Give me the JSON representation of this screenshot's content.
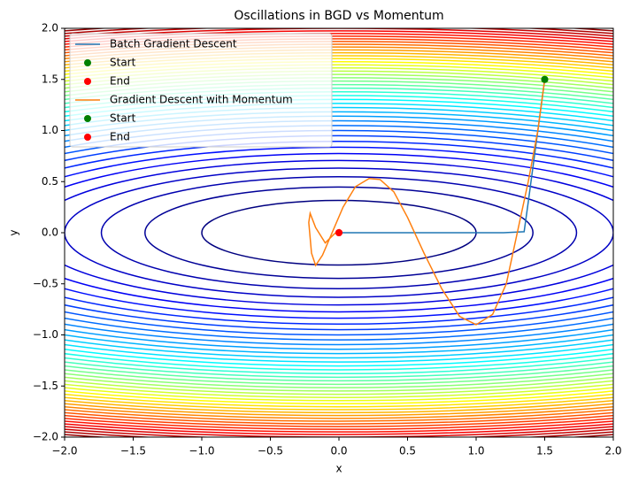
{
  "chart_data": {
    "type": "contour-line",
    "title": "Oscillations in BGD vs Momentum",
    "x_label": "x",
    "y_label": "y",
    "xlim": [
      -2,
      2
    ],
    "ylim": [
      -2,
      2
    ],
    "xticks": [
      {
        "value": -2,
        "label": "−2.0"
      },
      {
        "value": -1.5,
        "label": "−1.5"
      },
      {
        "value": -1,
        "label": "−1.0"
      },
      {
        "value": -0.5,
        "label": "−0.5"
      },
      {
        "value": 0,
        "label": "0.0"
      },
      {
        "value": 0.5,
        "label": "0.5"
      },
      {
        "value": 1,
        "label": "1.0"
      },
      {
        "value": 1.5,
        "label": "1.5"
      },
      {
        "value": 2,
        "label": "2.0"
      }
    ],
    "yticks": [
      {
        "value": -2,
        "label": "−2.0"
      },
      {
        "value": -1.5,
        "label": "−1.5"
      },
      {
        "value": -1,
        "label": "−1.0"
      },
      {
        "value": -0.5,
        "label": "−0.5"
      },
      {
        "value": 0,
        "label": "0.0"
      },
      {
        "value": 0.5,
        "label": "0.5"
      },
      {
        "value": 1,
        "label": "1.0"
      },
      {
        "value": 1.5,
        "label": "1.5"
      },
      {
        "value": 2,
        "label": "2.0"
      }
    ],
    "contour": {
      "function": "x^2 + 10y^2",
      "colormap": "jet",
      "levels": [
        1,
        2,
        3,
        4,
        5,
        6,
        7,
        8,
        9,
        10,
        11,
        12,
        13,
        14,
        15,
        16,
        17,
        18,
        19,
        20,
        21,
        22,
        23,
        24,
        25,
        26,
        27,
        28,
        29,
        30,
        31,
        32,
        33,
        34,
        35,
        36,
        37,
        38,
        39,
        40,
        41,
        42,
        43,
        44
      ]
    },
    "legend": "upper left",
    "series": [
      {
        "name": "Batch Gradient Descent",
        "kind": "line",
        "color": "#1f77b4",
        "x": [
          1.5,
          1.47,
          1.44,
          1.41,
          1.38,
          1.35,
          1.2,
          1.0,
          0.8,
          0.6,
          0.4,
          0.2,
          0.1,
          0.05,
          0.0
        ],
        "y": [
          1.5,
          1.2,
          0.9,
          0.6,
          0.3,
          0.01,
          0,
          0,
          0,
          0,
          0,
          0,
          0,
          0,
          0
        ]
      },
      {
        "name": "Start",
        "kind": "point",
        "color": "#008000",
        "x": [
          1.5
        ],
        "y": [
          1.5
        ]
      },
      {
        "name": "End",
        "kind": "point",
        "color": "#ff0000",
        "x": [
          0.0
        ],
        "y": [
          0.0
        ]
      },
      {
        "name": "Gradient Descent with Momentum",
        "kind": "line",
        "color": "#ff7f0e",
        "x": [
          1.5,
          1.45,
          1.38,
          1.3,
          1.22,
          1.12,
          1.0,
          0.88,
          0.75,
          0.62,
          0.5,
          0.4,
          0.3,
          0.22,
          0.12,
          0.03,
          -0.05,
          -0.12,
          -0.17,
          -0.2,
          -0.22,
          -0.21,
          -0.17,
          -0.1,
          -0.04,
          0.0,
          0.01
        ],
        "y": [
          1.5,
          1.0,
          0.5,
          0.0,
          -0.5,
          -0.8,
          -0.9,
          -0.82,
          -0.55,
          -0.2,
          0.15,
          0.4,
          0.52,
          0.53,
          0.45,
          0.25,
          0.0,
          -0.22,
          -0.32,
          -0.2,
          0.1,
          0.19,
          0.05,
          -0.1,
          -0.02,
          0.03,
          0.0
        ]
      },
      {
        "name": "Start",
        "kind": "point",
        "color": "#008000",
        "x": [
          1.5
        ],
        "y": [
          1.5
        ]
      },
      {
        "name": "End",
        "kind": "point",
        "color": "#ff0000",
        "x": [
          0.0
        ],
        "y": [
          0.0
        ]
      }
    ]
  }
}
